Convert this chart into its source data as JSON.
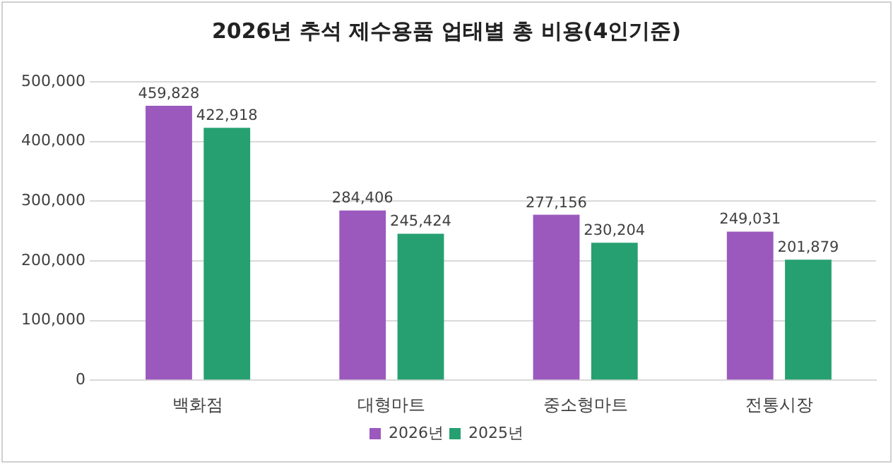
{
  "chart_data": {
    "type": "bar",
    "title": "2026년 추석 제수용품 업태별 총 비용(4인기준)",
    "categories": [
      "백화점",
      "대형마트",
      "중소형마트",
      "전통시장"
    ],
    "series": [
      {
        "name": "2026년",
        "color": "#9b59be",
        "values": [
          459828,
          284406,
          277156,
          249031
        ],
        "value_labels": [
          "459,828",
          "284,406",
          "277,156",
          "249,031"
        ]
      },
      {
        "name": "2025년",
        "color": "#26a070",
        "values": [
          422918,
          245424,
          230204,
          201879
        ],
        "value_labels": [
          "422,918",
          "245,424",
          "230,204",
          "201,879"
        ]
      }
    ],
    "ylim": [
      0,
      500000
    ],
    "yticks": [
      {
        "value": 0,
        "label": "0"
      },
      {
        "value": 100000,
        "label": "100,000"
      },
      {
        "value": 200000,
        "label": "200,000"
      },
      {
        "value": 300000,
        "label": "300,000"
      },
      {
        "value": 400000,
        "label": "400,000"
      },
      {
        "value": 500000,
        "label": "500,000"
      }
    ],
    "grid": "y",
    "legend": "bottom"
  }
}
